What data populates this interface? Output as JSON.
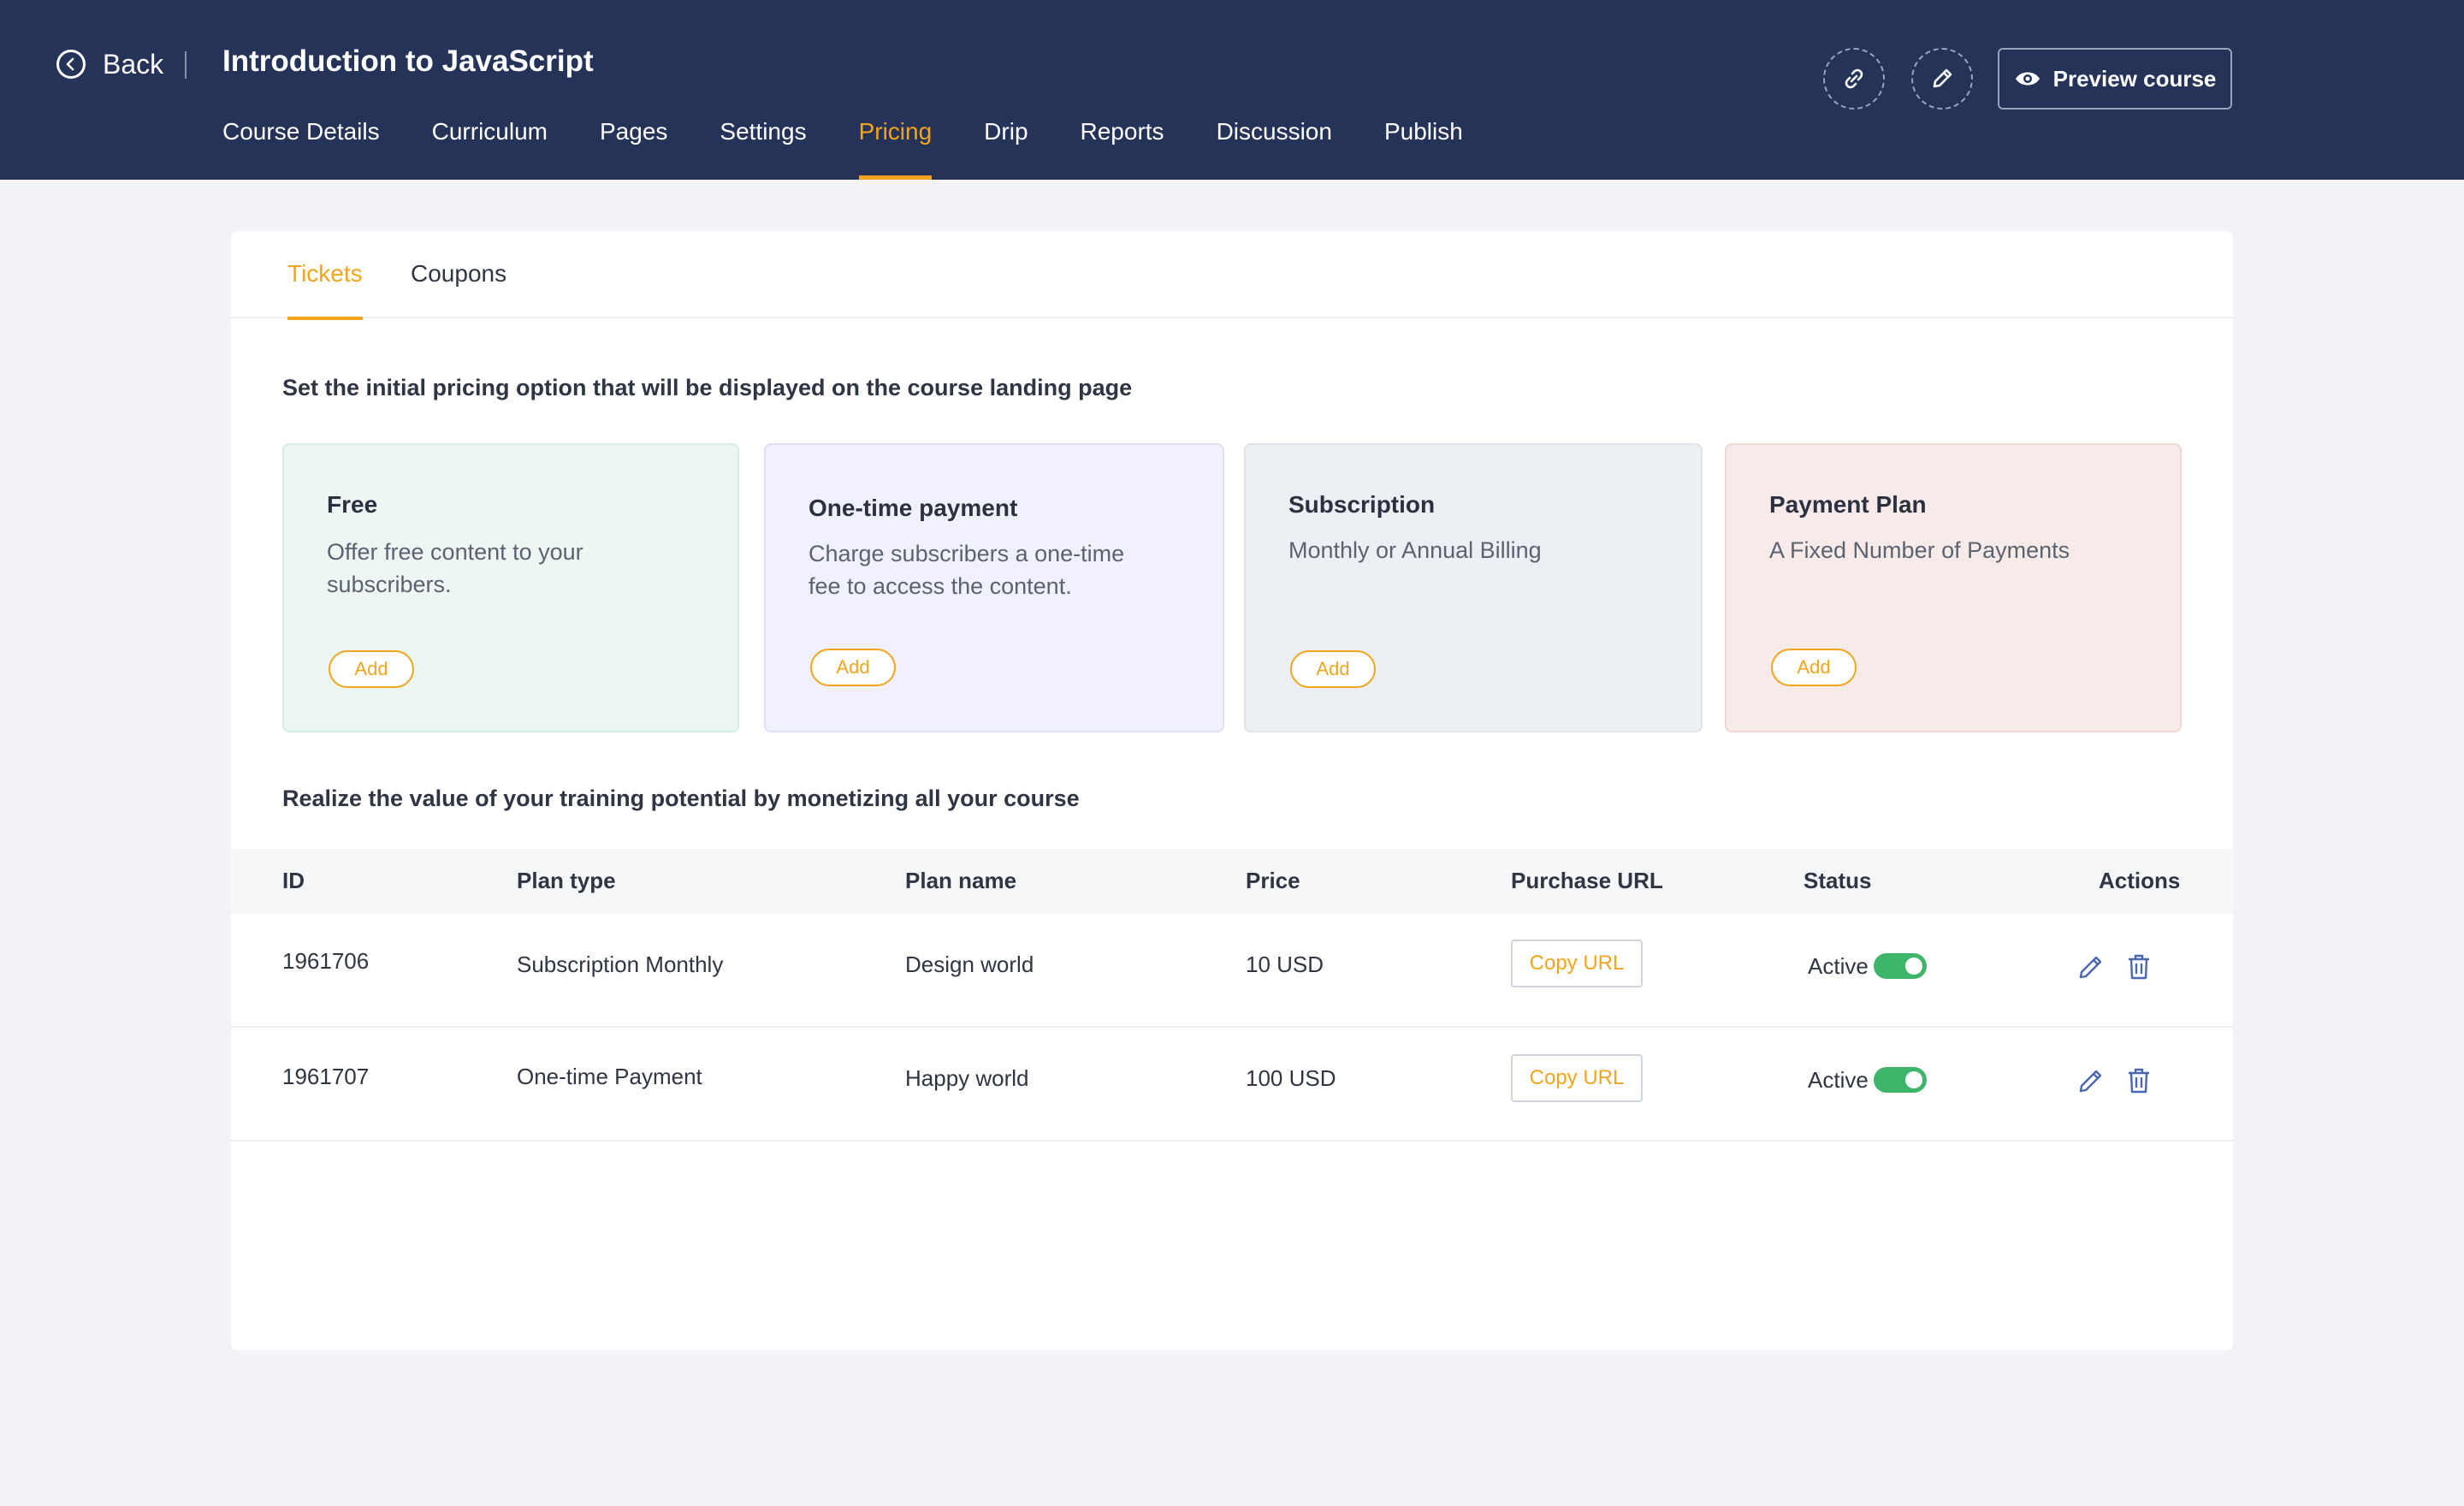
{
  "header": {
    "back_label": "Back",
    "course_title": "Introduction to JavaScript",
    "nav": [
      "Course Details",
      "Curriculum",
      "Pages",
      "Settings",
      "Pricing",
      "Drip",
      "Reports",
      "Discussion",
      "Publish"
    ],
    "active_nav": "Pricing",
    "preview_label": "Preview course",
    "icons": [
      "back-arrow-icon",
      "link-icon",
      "pencil-icon",
      "eye-icon"
    ]
  },
  "tabs": {
    "tickets": "Tickets",
    "coupons": "Coupons",
    "active": "Tickets"
  },
  "pricing": {
    "intro": "Set the initial pricing option that will be displayed on the course landing page",
    "plans": [
      {
        "title": "Free",
        "desc": "Offer free content to your subscribers.",
        "add": "Add",
        "bg": "#ecf7f4",
        "border": "#d6ede6"
      },
      {
        "title": "One-time payment",
        "desc": "Charge subscribers a one-time fee to access the content.",
        "add": "Add",
        "bg": "#f1f1fd",
        "border": "#e1e1f5"
      },
      {
        "title": "Subscription",
        "desc": "Monthly or Annual Billing",
        "add": "Add",
        "bg": "#eceff4",
        "border": "#e0e3ea"
      },
      {
        "title": "Payment Plan",
        "desc": "A Fixed Number of Payments",
        "add": "Add",
        "bg": "#f7ebe9",
        "border": "#efd9d5"
      }
    ]
  },
  "table": {
    "intro": "Realize the value of your training potential by monetizing all your course",
    "columns": {
      "id": "ID",
      "plan_type": "Plan type",
      "plan_name": "Plan name",
      "price": "Price",
      "purchase_url": "Purchase URL",
      "status": "Status",
      "actions": "Actions"
    },
    "rows": [
      {
        "id": "1961706",
        "plan_type": "Subscription Monthly",
        "plan_name": "Design world",
        "price": "10 USD",
        "copy": "Copy URL",
        "status": "Active"
      },
      {
        "id": "1961707",
        "plan_type": "One-time Payment",
        "plan_name": "Happy world",
        "price": "100 USD",
        "copy": "Copy URL",
        "status": "Active"
      }
    ]
  },
  "colors": {
    "header_bg": "#253359",
    "accent": "#f2a51c",
    "toggle_on": "#3fb56b",
    "page_bg": "#f3f3f7"
  }
}
